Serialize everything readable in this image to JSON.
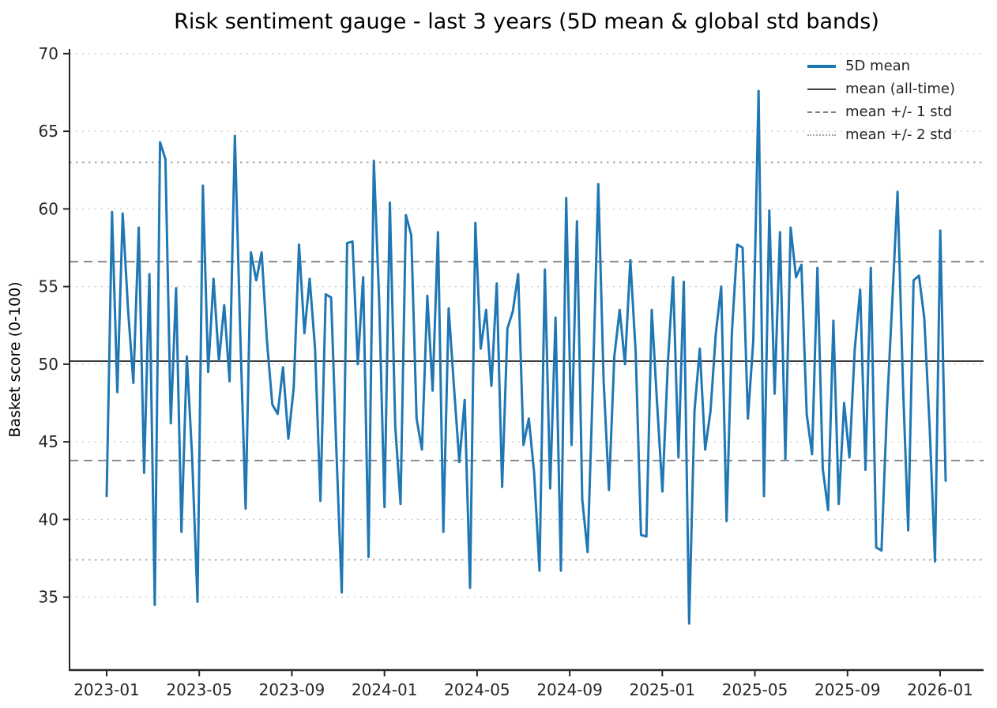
{
  "figure": {
    "title": "Risk sentiment gauge - last 3 years (5D mean & global std bands)",
    "background_color": "#ffffff",
    "accent_color": "#1f77b4"
  },
  "chart_data": {
    "type": "line",
    "title": "Risk sentiment gauge - last 3 years (5D mean & global std bands)",
    "xlabel": "",
    "ylabel": "Basket score (0-100)",
    "x_tick_labels": [
      "2023-01",
      "2023-05",
      "2023-09",
      "2024-01",
      "2024-05",
      "2024-09",
      "2025-01",
      "2025-05",
      "2025-09",
      "2026-01"
    ],
    "y_ticks": [
      70,
      65,
      60,
      55,
      50,
      45,
      40,
      35
    ],
    "ylim": [
      30.3,
      70.3
    ],
    "grid": "horizontal dotted lines at every y tick",
    "grid_color": "#c7c7c7",
    "legend_position": "upper right, no frame",
    "x_start": "2023-01",
    "x_end": "2026-01",
    "sampling_note": "values read from plot at ~weekly spacing over 3 years",
    "series": [
      {
        "name": "5D mean",
        "color": "#1f77b4",
        "line_width": 3,
        "values": [
          41.5,
          59.8,
          48.2,
          59.7,
          53.5,
          48.8,
          58.8,
          43.0,
          55.8,
          34.5,
          64.3,
          63.2,
          46.2,
          54.9,
          39.2,
          50.5,
          44.0,
          34.7,
          61.5,
          49.5,
          55.5,
          50.2,
          53.8,
          48.9,
          64.7,
          52.0,
          40.7,
          57.2,
          55.4,
          57.2,
          51.5,
          47.4,
          46.8,
          49.8,
          45.2,
          48.5,
          57.7,
          52.0,
          55.5,
          51.0,
          41.2,
          54.5,
          54.3,
          44.3,
          35.3,
          57.8,
          57.9,
          50.0,
          55.6,
          37.6,
          63.1,
          54.0,
          40.8,
          60.4,
          46.0,
          41.0,
          59.6,
          58.3,
          46.5,
          44.5,
          54.4,
          48.3,
          58.5,
          39.2,
          53.6,
          48.5,
          43.7,
          47.7,
          35.6,
          59.1,
          51.0,
          53.5,
          48.6,
          55.2,
          42.1,
          52.3,
          53.4,
          55.8,
          44.8,
          46.5,
          43.0,
          36.7,
          56.1,
          42.0,
          53.0,
          36.7,
          60.7,
          44.8,
          59.2,
          41.3,
          37.9,
          49.0,
          61.6,
          48.9,
          41.9,
          50.5,
          53.5,
          50.0,
          56.7,
          50.7,
          39.0,
          38.9,
          53.5,
          47.5,
          41.8,
          50.0,
          55.6,
          44.0,
          55.3,
          33.3,
          47.0,
          51.0,
          44.5,
          47.0,
          52.0,
          55.0,
          39.9,
          52.0,
          57.7,
          57.5,
          46.5,
          51.5,
          67.6,
          41.5,
          59.9,
          48.1,
          58.5,
          43.9,
          58.8,
          55.6,
          56.4,
          46.8,
          44.2,
          56.2,
          43.3,
          40.6,
          52.8,
          41.0,
          47.5,
          44.0,
          51.0,
          54.8,
          43.2,
          56.2,
          38.2,
          38.0,
          47.0,
          54.0,
          61.1,
          48.8,
          39.3,
          55.4,
          55.7,
          53.0,
          46.0,
          37.3,
          58.6,
          42.5
        ]
      }
    ],
    "reference_lines": [
      {
        "name": "mean-all-time",
        "label": "mean (all-time)",
        "value": 50.2,
        "style": "solid",
        "color": "#404040",
        "width": 2
      },
      {
        "name": "mean-plus-1std",
        "label": "mean +/- 1 std",
        "value": 56.6,
        "style": "dashed",
        "color": "#7f7f7f",
        "width": 1.8
      },
      {
        "name": "mean-minus-1std",
        "label": "mean +/- 1 std",
        "value": 43.8,
        "style": "dashed",
        "color": "#7f7f7f",
        "width": 1.8
      },
      {
        "name": "mean-plus-2std",
        "label": "mean +/- 2 std",
        "value": 63.0,
        "style": "dotted",
        "color": "#a3a3a3",
        "width": 1.8
      },
      {
        "name": "mean-minus-2std",
        "label": "mean +/- 2 std",
        "value": 37.4,
        "style": "dotted",
        "color": "#a3a3a3",
        "width": 1.8
      }
    ],
    "legend": {
      "entries": [
        {
          "label": "5D mean"
        },
        {
          "label": "mean (all-time)"
        },
        {
          "label": "mean +/- 1 std"
        },
        {
          "label": "mean +/- 2 std"
        }
      ]
    },
    "axis_color": "#262626"
  }
}
